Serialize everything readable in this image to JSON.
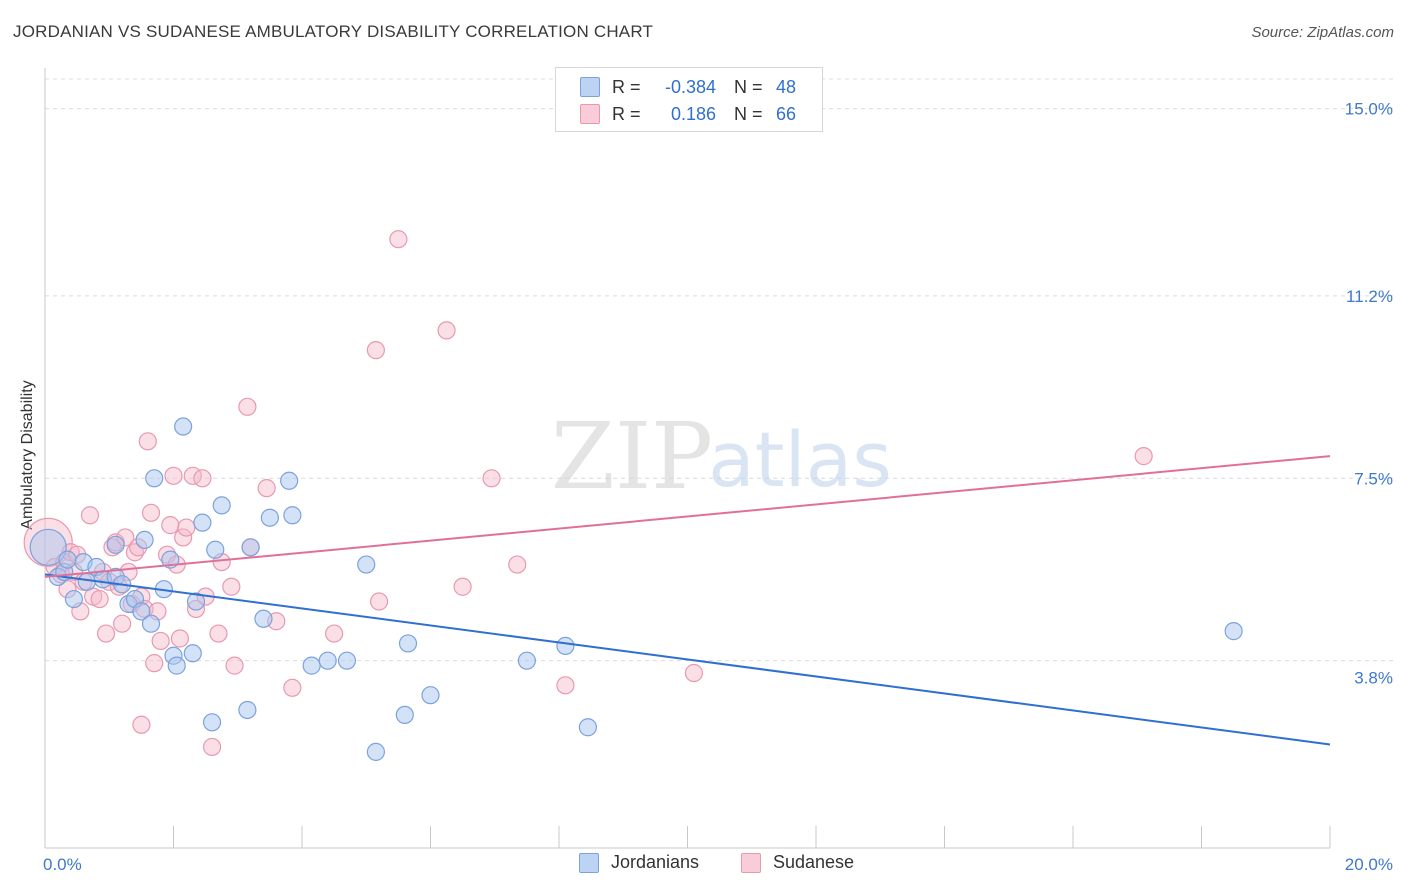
{
  "title": "JORDANIAN VS SUDANESE AMBULATORY DISABILITY CORRELATION CHART",
  "source": "Source: ZipAtlas.com",
  "watermark": {
    "part1": "ZIP",
    "part2": "atlas"
  },
  "legend_top": [
    {
      "r_label": "R =",
      "r_value": "-0.384",
      "n_label": "N =",
      "n_value": "48"
    },
    {
      "r_label": "R =",
      "r_value": "0.186",
      "n_label": "N =",
      "n_value": "66"
    }
  ],
  "legend_bottom": [
    "Jordanians",
    "Sudanese"
  ],
  "colors": {
    "jordanians_fill": "#a9c6f0",
    "jordanians_stroke": "#7ca2dc",
    "jordanians_line": "#2f6fd0",
    "sudanese_fill": "#f5b8ca",
    "sudanese_stroke": "#e899b0",
    "sudanese_line": "#e0709a",
    "tick_label": "#3f78cc",
    "grid": "#dcdcdc"
  },
  "chart_data": {
    "type": "scatter",
    "title": "JORDANIAN VS SUDANESE AMBULATORY DISABILITY CORRELATION CHART",
    "xlabel": "",
    "ylabel": "Ambulatory Disability",
    "xlim": [
      0,
      20
    ],
    "ylim": [
      0,
      15.6
    ],
    "x_tick_labels": [
      {
        "value": 0,
        "label": "0.0%"
      },
      {
        "value": 20,
        "label": "20.0%"
      }
    ],
    "y_tick_labels": [
      {
        "value": 3.8,
        "label": "3.8%"
      },
      {
        "value": 7.5,
        "label": "7.5%"
      },
      {
        "value": 11.2,
        "label": "11.2%"
      },
      {
        "value": 15.0,
        "label": "15.0%"
      }
    ],
    "x_minor_ticks": [
      0,
      2,
      4,
      6,
      8,
      10,
      12,
      14,
      16,
      18,
      20
    ],
    "legend_position": "top-center",
    "series": [
      {
        "name": "Jordanians",
        "r": -0.384,
        "n": 48,
        "trend": {
          "x": [
            0,
            20
          ],
          "y": [
            5.55,
            2.1
          ]
        },
        "points": [
          {
            "x": 0.05,
            "y": 6.1,
            "big": true
          },
          {
            "x": 0.2,
            "y": 5.5
          },
          {
            "x": 0.3,
            "y": 5.6
          },
          {
            "x": 0.35,
            "y": 5.85
          },
          {
            "x": 0.45,
            "y": 5.05
          },
          {
            "x": 0.6,
            "y": 5.8
          },
          {
            "x": 0.65,
            "y": 5.4
          },
          {
            "x": 0.8,
            "y": 5.7
          },
          {
            "x": 0.9,
            "y": 5.45
          },
          {
            "x": 1.1,
            "y": 5.5
          },
          {
            "x": 1.1,
            "y": 6.15
          },
          {
            "x": 1.2,
            "y": 5.35
          },
          {
            "x": 1.3,
            "y": 4.95
          },
          {
            "x": 1.4,
            "y": 5.05
          },
          {
            "x": 1.5,
            "y": 4.8
          },
          {
            "x": 1.55,
            "y": 6.25
          },
          {
            "x": 1.65,
            "y": 4.55
          },
          {
            "x": 1.7,
            "y": 7.5
          },
          {
            "x": 1.85,
            "y": 5.25
          },
          {
            "x": 1.95,
            "y": 5.85
          },
          {
            "x": 2.0,
            "y": 3.9
          },
          {
            "x": 2.05,
            "y": 3.7
          },
          {
            "x": 2.15,
            "y": 8.55
          },
          {
            "x": 2.3,
            "y": 3.95
          },
          {
            "x": 2.35,
            "y": 5.0
          },
          {
            "x": 2.45,
            "y": 6.6
          },
          {
            "x": 2.6,
            "y": 2.55
          },
          {
            "x": 2.65,
            "y": 6.05
          },
          {
            "x": 2.75,
            "y": 6.95
          },
          {
            "x": 3.15,
            "y": 2.8
          },
          {
            "x": 3.2,
            "y": 6.1
          },
          {
            "x": 3.4,
            "y": 4.65
          },
          {
            "x": 3.5,
            "y": 6.7
          },
          {
            "x": 3.8,
            "y": 7.45
          },
          {
            "x": 3.85,
            "y": 6.75
          },
          {
            "x": 4.15,
            "y": 3.7
          },
          {
            "x": 4.4,
            "y": 3.8
          },
          {
            "x": 4.7,
            "y": 3.8
          },
          {
            "x": 5.0,
            "y": 5.75
          },
          {
            "x": 5.15,
            "y": 1.95
          },
          {
            "x": 5.6,
            "y": 2.7
          },
          {
            "x": 5.65,
            "y": 4.15
          },
          {
            "x": 6.0,
            "y": 3.1
          },
          {
            "x": 7.5,
            "y": 3.8
          },
          {
            "x": 8.1,
            "y": 4.1
          },
          {
            "x": 8.45,
            "y": 2.45
          },
          {
            "x": 18.5,
            "y": 4.4
          }
        ]
      },
      {
        "name": "Sudanese",
        "r": 0.186,
        "n": 66,
        "trend": {
          "x": [
            0,
            20
          ],
          "y": [
            5.5,
            7.95
          ]
        },
        "points": [
          {
            "x": 0.05,
            "y": 6.2,
            "big": true
          },
          {
            "x": 0.15,
            "y": 5.7
          },
          {
            "x": 0.25,
            "y": 5.55
          },
          {
            "x": 0.3,
            "y": 5.8
          },
          {
            "x": 0.35,
            "y": 5.25
          },
          {
            "x": 0.4,
            "y": 6.0
          },
          {
            "x": 0.45,
            "y": 5.6
          },
          {
            "x": 0.5,
            "y": 5.95
          },
          {
            "x": 0.55,
            "y": 4.8
          },
          {
            "x": 0.6,
            "y": 5.4
          },
          {
            "x": 0.7,
            "y": 6.75
          },
          {
            "x": 0.75,
            "y": 5.1
          },
          {
            "x": 0.85,
            "y": 5.05
          },
          {
            "x": 0.9,
            "y": 5.6
          },
          {
            "x": 0.95,
            "y": 4.35
          },
          {
            "x": 1.0,
            "y": 5.4
          },
          {
            "x": 1.05,
            "y": 6.1
          },
          {
            "x": 1.1,
            "y": 6.2
          },
          {
            "x": 1.15,
            "y": 5.3
          },
          {
            "x": 1.2,
            "y": 4.55
          },
          {
            "x": 1.25,
            "y": 6.3
          },
          {
            "x": 1.3,
            "y": 5.6
          },
          {
            "x": 1.35,
            "y": 4.95
          },
          {
            "x": 1.4,
            "y": 6.0
          },
          {
            "x": 1.45,
            "y": 6.1
          },
          {
            "x": 1.5,
            "y": 5.1
          },
          {
            "x": 1.5,
            "y": 2.5
          },
          {
            "x": 1.55,
            "y": 4.85
          },
          {
            "x": 1.6,
            "y": 8.25
          },
          {
            "x": 1.65,
            "y": 6.8
          },
          {
            "x": 1.7,
            "y": 3.75
          },
          {
            "x": 1.75,
            "y": 4.8
          },
          {
            "x": 1.8,
            "y": 4.2
          },
          {
            "x": 1.9,
            "y": 5.95
          },
          {
            "x": 1.95,
            "y": 6.55
          },
          {
            "x": 2.0,
            "y": 7.55
          },
          {
            "x": 2.05,
            "y": 5.75
          },
          {
            "x": 2.1,
            "y": 4.25
          },
          {
            "x": 2.15,
            "y": 6.3
          },
          {
            "x": 2.2,
            "y": 6.5
          },
          {
            "x": 2.3,
            "y": 7.55
          },
          {
            "x": 2.35,
            "y": 4.85
          },
          {
            "x": 2.45,
            "y": 7.5
          },
          {
            "x": 2.5,
            "y": 5.1
          },
          {
            "x": 2.6,
            "y": 2.05
          },
          {
            "x": 2.7,
            "y": 4.35
          },
          {
            "x": 2.75,
            "y": 5.8
          },
          {
            "x": 2.9,
            "y": 5.3
          },
          {
            "x": 2.95,
            "y": 3.7
          },
          {
            "x": 3.15,
            "y": 8.95
          },
          {
            "x": 3.2,
            "y": 6.1
          },
          {
            "x": 3.45,
            "y": 7.3
          },
          {
            "x": 3.6,
            "y": 4.6
          },
          {
            "x": 3.85,
            "y": 3.25
          },
          {
            "x": 4.5,
            "y": 4.35
          },
          {
            "x": 5.15,
            "y": 10.1
          },
          {
            "x": 5.2,
            "y": 5.0
          },
          {
            "x": 5.5,
            "y": 12.35
          },
          {
            "x": 6.25,
            "y": 10.5
          },
          {
            "x": 6.5,
            "y": 5.3
          },
          {
            "x": 6.95,
            "y": 7.5
          },
          {
            "x": 7.35,
            "y": 5.75
          },
          {
            "x": 8.1,
            "y": 3.3
          },
          {
            "x": 10.1,
            "y": 3.55
          },
          {
            "x": 17.1,
            "y": 7.95
          }
        ]
      }
    ]
  }
}
